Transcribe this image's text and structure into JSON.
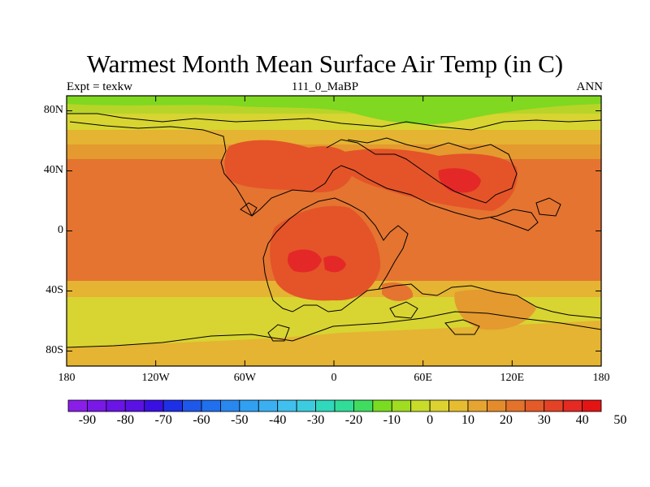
{
  "header": {
    "title": "Warmest Month Mean Surface Air Temp (in C)",
    "left": "Expt = texkw",
    "center": "111_0_MaBP",
    "right": "ANN"
  },
  "axes": {
    "lat_ticks": [
      {
        "label": "80N",
        "value": 80
      },
      {
        "label": "40N",
        "value": 40
      },
      {
        "label": "0",
        "value": 0
      },
      {
        "label": "40S",
        "value": -40
      },
      {
        "label": "80S",
        "value": -80
      }
    ],
    "lon_ticks": [
      {
        "label": "180",
        "value": -180
      },
      {
        "label": "120W",
        "value": -120
      },
      {
        "label": "60W",
        "value": -60
      },
      {
        "label": "0",
        "value": 0
      },
      {
        "label": "60E",
        "value": 60
      },
      {
        "label": "120E",
        "value": 120
      },
      {
        "label": "180",
        "value": 180
      }
    ],
    "lon_range": [
      -180,
      180
    ],
    "lat_range": [
      -90,
      90
    ]
  },
  "colorbar": {
    "colors": [
      "#8a1ee8",
      "#7a18e8",
      "#6a14e6",
      "#5a12e4",
      "#3a10e2",
      "#1e30e6",
      "#1e58ea",
      "#2070ee",
      "#2888f0",
      "#30a0f2",
      "#3ab0f2",
      "#40c0ee",
      "#3ccce0",
      "#30d8bc",
      "#30dc98",
      "#40dc60",
      "#7adc20",
      "#a0dc20",
      "#c8dc2a",
      "#dcd230",
      "#e6bc30",
      "#e6a430",
      "#e48c2c",
      "#e4722a",
      "#e45a28",
      "#e44226",
      "#e42a22",
      "#e41414"
    ],
    "labels": [
      "-90",
      "-80",
      "-70",
      "-60",
      "-50",
      "-40",
      "-30",
      "-20",
      "-10",
      "0",
      "10",
      "20",
      "30",
      "40",
      "50"
    ]
  },
  "legend_colors": {
    "green": "#80d820",
    "yellow_green": "#b8d428",
    "yellow": "#d8d432",
    "light_orange": "#e4b432",
    "orange": "#e49a2e",
    "orange_red": "#e47430",
    "red_orange": "#e45428",
    "red": "#e42828"
  }
}
